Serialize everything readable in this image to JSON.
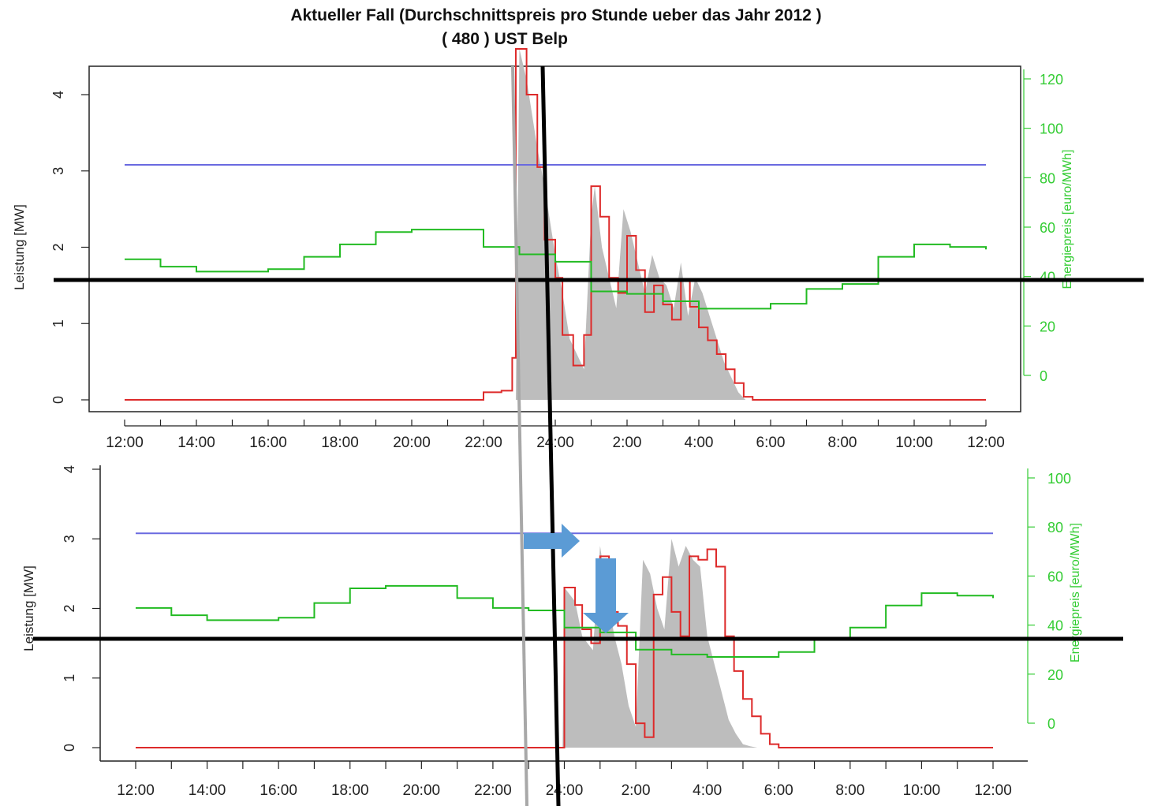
{
  "title": "Aktueller Fall (Durchschnittspreis pro Stunde ueber das Jahr 2012 )",
  "subtitle": "( 480 ) UST Belp",
  "colors": {
    "power_line": "#dd2a2a",
    "power_fill": "#bdbdbd",
    "limit": "#6a6ae0",
    "price": "#22bb22",
    "price_axis": "#33cc33",
    "marker_black": "#000000",
    "marker_gray": "#a8a8a8",
    "arrow": "#5b9bd5"
  },
  "annotations": {
    "horizontal_lines": 2,
    "vertical_lines": [
      {
        "color": "black"
      },
      {
        "color": "gray"
      }
    ],
    "arrows": [
      {
        "direction": "right",
        "color": "blue"
      },
      {
        "direction": "down",
        "color": "blue"
      }
    ]
  },
  "chart_data": [
    {
      "type": "area",
      "x_ticks": [
        "12:00",
        "14:00",
        "16:00",
        "18:00",
        "20:00",
        "22:00",
        "24:00",
        "2:00",
        "4:00",
        "6:00",
        "8:00",
        "10:00",
        "12:00"
      ],
      "x_range_hours": [
        12,
        36
      ],
      "ylabel": "Leistung [MW]",
      "y_ticks": [
        0,
        1,
        2,
        3,
        4
      ],
      "ylim": [
        0,
        4.7
      ],
      "y2label": "Energiepreis [euro/MWh]",
      "y2_ticks": [
        0,
        20,
        40,
        60,
        80,
        100,
        120
      ],
      "y2lim": [
        -15,
        125
      ],
      "limit_line": 3.08,
      "series": [
        {
          "kind": "filled-area",
          "x": [
            22.9,
            23.0,
            23.2,
            23.5,
            23.7,
            23.9,
            24.0,
            24.2,
            24.4,
            24.5,
            24.8,
            25.0,
            25.1,
            25.3,
            25.5,
            25.7,
            25.9,
            26.1,
            26.3,
            26.5,
            26.7,
            26.9,
            27.1,
            27.3,
            27.5,
            27.7,
            27.9,
            28.1,
            28.3,
            28.5,
            28.7,
            28.9,
            29.1,
            29.3,
            29.4
          ],
          "y": [
            0,
            4.6,
            4.2,
            3.3,
            2.8,
            2.2,
            1.9,
            1.4,
            0.8,
            0.7,
            0.4,
            2.4,
            2.8,
            2.0,
            1.6,
            1.2,
            2.5,
            2.2,
            1.8,
            1.4,
            1.9,
            1.6,
            1.5,
            1.2,
            1.8,
            1.1,
            1.6,
            1.4,
            1.1,
            0.8,
            0.5,
            0.3,
            0.1,
            0.0,
            0
          ]
        },
        {
          "kind": "step",
          "x": [
            12,
            22,
            22.5,
            22.8,
            22.9,
            23.2,
            23.5,
            23.7,
            24.0,
            24.2,
            24.5,
            24.8,
            25.0,
            25.25,
            25.5,
            25.75,
            26.0,
            26.25,
            26.5,
            26.75,
            27.0,
            27.25,
            27.5,
            27.75,
            28.0,
            28.25,
            28.5,
            28.75,
            29.0,
            29.25,
            29.5,
            36
          ],
          "y": [
            0,
            0.1,
            0.12,
            0.55,
            4.6,
            4.0,
            3.05,
            2.1,
            1.6,
            0.85,
            0.45,
            0.85,
            2.8,
            2.4,
            1.6,
            1.4,
            2.15,
            1.7,
            1.15,
            1.5,
            1.25,
            1.05,
            1.58,
            1.22,
            0.95,
            0.78,
            0.6,
            0.4,
            0.22,
            0.04,
            0,
            0
          ]
        },
        {
          "kind": "step-price",
          "x": [
            12,
            13,
            14,
            15,
            16,
            17,
            18,
            19,
            20,
            21,
            22,
            23,
            24,
            25,
            26,
            27,
            28,
            29,
            30,
            31,
            32,
            33,
            34,
            35,
            36
          ],
          "y": [
            47,
            44,
            42,
            42,
            43,
            48,
            53,
            58,
            59,
            59,
            52,
            49,
            46,
            34,
            33,
            30,
            27,
            27,
            29,
            35,
            37,
            48,
            53,
            52,
            51
          ]
        }
      ]
    },
    {
      "type": "area",
      "x_ticks": [
        "12:00",
        "14:00",
        "16:00",
        "18:00",
        "20:00",
        "22:00",
        "24:00",
        "2:00",
        "4:00",
        "6:00",
        "8:00",
        "10:00",
        "12:00"
      ],
      "x_range_hours": [
        12,
        36
      ],
      "ylabel": "Leistung [MW]",
      "y_ticks": [
        0,
        1,
        2,
        3,
        4
      ],
      "ylim": [
        -0.15,
        4.15
      ],
      "y2label": "Energiepreis [euro/MWh]",
      "y2_ticks": [
        0,
        20,
        40,
        60,
        80,
        100
      ],
      "y2lim": [
        -15,
        110
      ],
      "limit_line": 3.08,
      "series": [
        {
          "kind": "filled-area",
          "x": [
            23.95,
            24.0,
            24.3,
            24.5,
            24.8,
            25.0,
            25.2,
            25.4,
            25.6,
            25.8,
            26.0,
            26.2,
            26.4,
            26.6,
            26.8,
            27.0,
            27.2,
            27.4,
            27.6,
            27.8,
            28.0,
            28.2,
            28.4,
            28.6,
            28.8,
            29.0,
            29.2,
            29.4,
            29.6,
            29.8,
            30.0,
            30.05
          ],
          "y": [
            0,
            2.3,
            2.1,
            1.6,
            1.4,
            2.9,
            2.2,
            1.6,
            1.2,
            0.6,
            0.3,
            2.7,
            2.5,
            2.0,
            1.7,
            3.0,
            2.6,
            2.9,
            2.7,
            2.6,
            1.6,
            1.2,
            0.8,
            0.4,
            0.2,
            0.05,
            0.02,
            0,
            0,
            0,
            0,
            0
          ]
        },
        {
          "kind": "step",
          "x": [
            12,
            23.9,
            24.0,
            24.3,
            24.5,
            24.75,
            25.0,
            25.25,
            25.5,
            25.75,
            26.0,
            26.25,
            26.5,
            26.75,
            27.0,
            27.25,
            27.5,
            27.75,
            28.0,
            28.25,
            28.5,
            28.75,
            29.0,
            29.25,
            29.5,
            29.75,
            30.0,
            36
          ],
          "y": [
            0,
            0,
            2.3,
            2.05,
            1.7,
            1.5,
            2.75,
            1.95,
            1.75,
            1.2,
            0.35,
            0.15,
            2.2,
            2.45,
            1.95,
            1.6,
            2.75,
            2.7,
            2.85,
            2.6,
            1.6,
            1.1,
            0.7,
            0.45,
            0.2,
            0.05,
            0,
            0
          ]
        },
        {
          "kind": "step-price",
          "x": [
            12,
            13,
            14,
            15,
            16,
            17,
            18,
            19,
            20,
            21,
            22,
            23,
            24,
            25,
            26,
            27,
            28,
            29,
            30,
            31,
            32,
            33,
            34,
            35,
            36
          ],
          "y": [
            47,
            44,
            42,
            42,
            43,
            49,
            55,
            56,
            56,
            51,
            47,
            46,
            39,
            37,
            30,
            28,
            27,
            27,
            29,
            34,
            39,
            48,
            53,
            52,
            51
          ]
        }
      ]
    }
  ]
}
